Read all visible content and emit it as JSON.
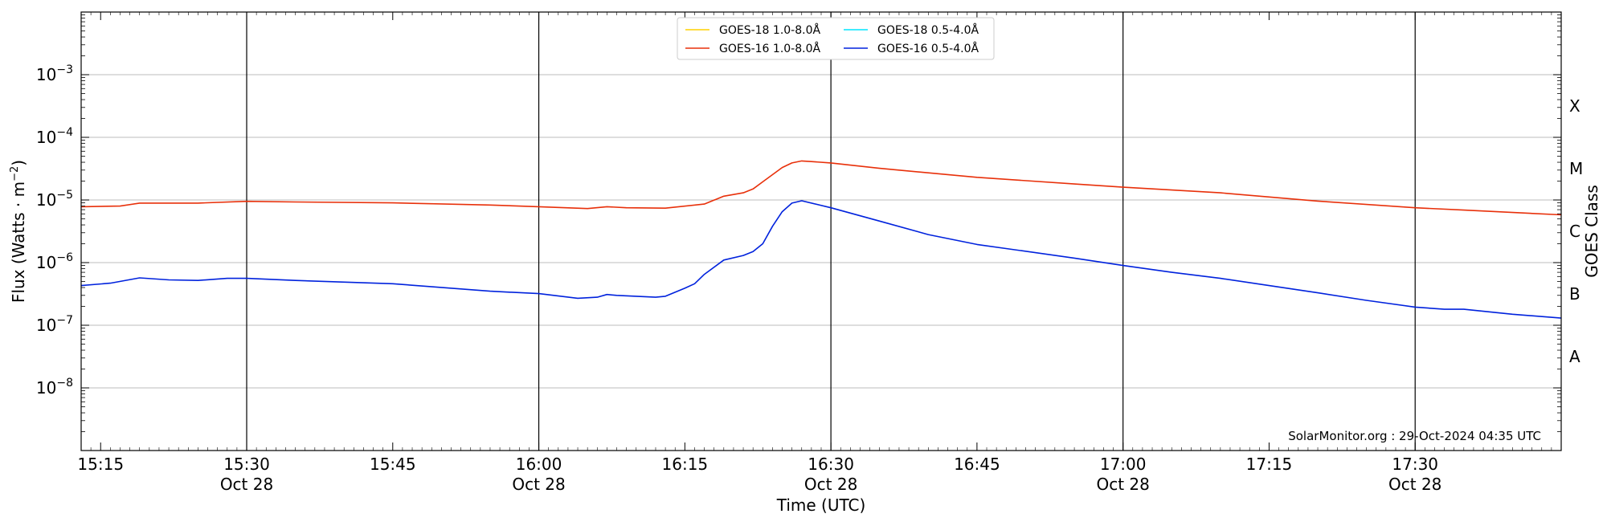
{
  "chart_data": {
    "type": "line",
    "xlabel": "Time (UTC)",
    "ylabel_main": "Flux (Watts · m",
    "ylabel_sup": "−2",
    "ylabel_close": ")",
    "y2label": "GOES Class",
    "yscale": "log",
    "ylim": [
      1e-09,
      0.01
    ],
    "xlim": [
      "2024-10-28 15:13",
      "2024-10-28 17:45"
    ],
    "grid_y": true,
    "legend_position": "top-center",
    "watermark": "SolarMonitor.org : 29-Oct-2024 04:35 UTC",
    "x_ticks": [
      {
        "time": "15:15",
        "date": ""
      },
      {
        "time": "15:30",
        "date": "Oct 28"
      },
      {
        "time": "15:45",
        "date": ""
      },
      {
        "time": "16:00",
        "date": "Oct 28"
      },
      {
        "time": "16:15",
        "date": ""
      },
      {
        "time": "16:30",
        "date": "Oct 28"
      },
      {
        "time": "16:45",
        "date": ""
      },
      {
        "time": "17:00",
        "date": "Oct 28"
      },
      {
        "time": "17:15",
        "date": ""
      },
      {
        "time": "17:30",
        "date": "Oct 28"
      }
    ],
    "y_ticks": [
      {
        "base": "10",
        "exp": "−3",
        "value": 0.001
      },
      {
        "base": "10",
        "exp": "−4",
        "value": 0.0001
      },
      {
        "base": "10",
        "exp": "−5",
        "value": 1e-05
      },
      {
        "base": "10",
        "exp": "−6",
        "value": 1e-06
      },
      {
        "base": "10",
        "exp": "−7",
        "value": 1e-07
      },
      {
        "base": "10",
        "exp": "−8",
        "value": 1e-08
      }
    ],
    "goes_classes": [
      {
        "label": "X",
        "value": 0.000316
      },
      {
        "label": "M",
        "value": 3.16e-05
      },
      {
        "label": "C",
        "value": 3.16e-06
      },
      {
        "label": "B",
        "value": 3.16e-07
      },
      {
        "label": "A",
        "value": 3.16e-08
      }
    ],
    "vlines": [
      "15:30",
      "16:00",
      "16:30",
      "17:00",
      "17:30"
    ],
    "series": [
      {
        "name": "GOES-18 1.0-8.0Å",
        "color": "#ffd000",
        "x": [],
        "values": []
      },
      {
        "name": "GOES-16 1.0-8.0Å",
        "color": "#e8300a",
        "x": [
          "15:13",
          "15:17",
          "15:19",
          "15:22",
          "15:25",
          "15:30",
          "15:35",
          "15:45",
          "15:55",
          "16:00",
          "16:05",
          "16:07",
          "16:09",
          "16:13",
          "16:17",
          "16:19",
          "16:21",
          "16:22",
          "16:23",
          "16:25",
          "16:26",
          "16:27",
          "16:28",
          "16:30",
          "16:35",
          "16:45",
          "16:55",
          "17:00",
          "17:10",
          "17:20",
          "17:30",
          "17:35",
          "17:45"
        ],
        "values": [
          7.8e-06,
          8e-06,
          8.9e-06,
          8.9e-06,
          8.9e-06,
          9.5e-06,
          9.3e-06,
          9e-06,
          8.3e-06,
          7.8e-06,
          7.3e-06,
          7.8e-06,
          7.5e-06,
          7.4e-06,
          8.6e-06,
          1.15e-05,
          1.3e-05,
          1.5e-05,
          1.95e-05,
          3.3e-05,
          3.9e-05,
          4.2e-05,
          4.1e-05,
          3.9e-05,
          3.2e-05,
          2.3e-05,
          1.8e-05,
          1.6e-05,
          1.3e-05,
          9.6e-06,
          7.5e-06,
          6.9e-06,
          5.8e-06
        ]
      },
      {
        "name": "GOES-18 0.5-4.0Å",
        "color": "#00e5ff",
        "x": [],
        "values": []
      },
      {
        "name": "GOES-16 0.5-4.0Å",
        "color": "#0022dd",
        "x": [
          "15:13",
          "15:16",
          "15:19",
          "15:22",
          "15:25",
          "15:28",
          "15:30",
          "15:35",
          "15:45",
          "15:55",
          "16:00",
          "16:04",
          "16:06",
          "16:07",
          "16:08",
          "16:12",
          "16:13",
          "16:15",
          "16:16",
          "16:17",
          "16:19",
          "16:21",
          "16:22",
          "16:23",
          "16:24",
          "16:25",
          "16:26",
          "16:27",
          "16:30",
          "16:35",
          "16:40",
          "16:45",
          "16:55",
          "17:00",
          "17:05",
          "17:10",
          "17:15",
          "17:20",
          "17:25",
          "17:30",
          "17:33",
          "17:35",
          "17:40",
          "17:45"
        ],
        "values": [
          4.3e-07,
          4.7e-07,
          5.7e-07,
          5.3e-07,
          5.2e-07,
          5.6e-07,
          5.6e-07,
          5.2e-07,
          4.6e-07,
          3.5e-07,
          3.2e-07,
          2.7e-07,
          2.8e-07,
          3.1e-07,
          3e-07,
          2.8e-07,
          2.9e-07,
          3.9e-07,
          4.6e-07,
          6.5e-07,
          1.1e-06,
          1.3e-06,
          1.5e-06,
          2e-06,
          3.8e-06,
          6.5e-06,
          8.9e-06,
          9.7e-06,
          7.5e-06,
          4.6e-06,
          2.8e-06,
          1.95e-06,
          1.18e-06,
          9e-07,
          7e-07,
          5.6e-07,
          4.3e-07,
          3.3e-07,
          2.5e-07,
          1.95e-07,
          1.8e-07,
          1.8e-07,
          1.5e-07,
          1.3e-07
        ]
      }
    ]
  }
}
